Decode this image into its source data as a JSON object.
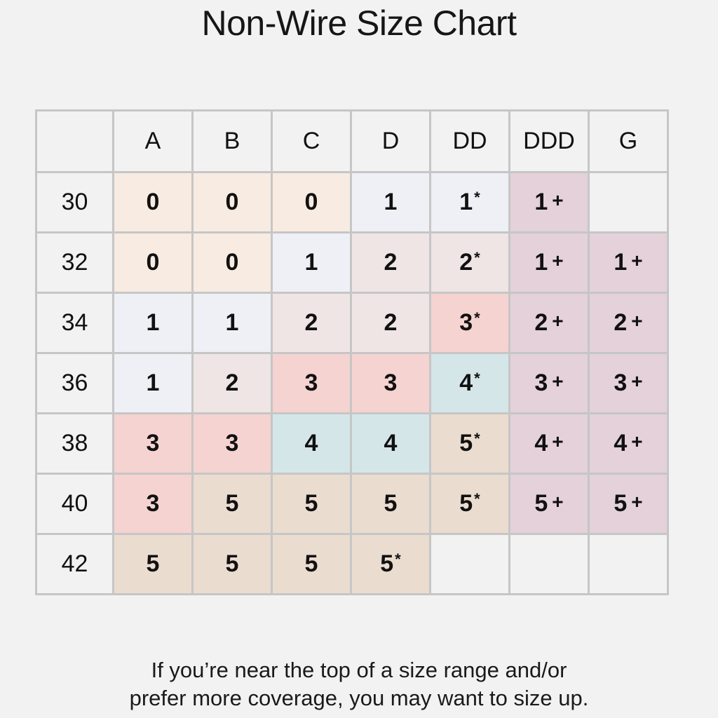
{
  "title": "Non-Wire Size Chart",
  "columns": [
    "A",
    "B",
    "C",
    "D",
    "DD",
    "DDD",
    "G"
  ],
  "rows": [
    {
      "band": "30",
      "cells": [
        {
          "size": "0",
          "mark": ""
        },
        {
          "size": "0",
          "mark": ""
        },
        {
          "size": "0",
          "mark": ""
        },
        {
          "size": "1",
          "mark": ""
        },
        {
          "size": "1",
          "mark": "*"
        },
        {
          "size": "1",
          "mark": "+"
        },
        {
          "size": "",
          "mark": ""
        }
      ]
    },
    {
      "band": "32",
      "cells": [
        {
          "size": "0",
          "mark": ""
        },
        {
          "size": "0",
          "mark": ""
        },
        {
          "size": "1",
          "mark": ""
        },
        {
          "size": "2",
          "mark": ""
        },
        {
          "size": "2",
          "mark": "*"
        },
        {
          "size": "1",
          "mark": "+"
        },
        {
          "size": "1",
          "mark": "+"
        }
      ]
    },
    {
      "band": "34",
      "cells": [
        {
          "size": "1",
          "mark": ""
        },
        {
          "size": "1",
          "mark": ""
        },
        {
          "size": "2",
          "mark": ""
        },
        {
          "size": "2",
          "mark": ""
        },
        {
          "size": "3",
          "mark": "*"
        },
        {
          "size": "2",
          "mark": "+"
        },
        {
          "size": "2",
          "mark": "+"
        }
      ]
    },
    {
      "band": "36",
      "cells": [
        {
          "size": "1",
          "mark": ""
        },
        {
          "size": "2",
          "mark": ""
        },
        {
          "size": "3",
          "mark": ""
        },
        {
          "size": "3",
          "mark": ""
        },
        {
          "size": "4",
          "mark": "*"
        },
        {
          "size": "3",
          "mark": "+"
        },
        {
          "size": "3",
          "mark": "+"
        }
      ]
    },
    {
      "band": "38",
      "cells": [
        {
          "size": "3",
          "mark": ""
        },
        {
          "size": "3",
          "mark": ""
        },
        {
          "size": "4",
          "mark": ""
        },
        {
          "size": "4",
          "mark": ""
        },
        {
          "size": "5",
          "mark": "*"
        },
        {
          "size": "4",
          "mark": "+"
        },
        {
          "size": "4",
          "mark": "+"
        }
      ]
    },
    {
      "band": "40",
      "cells": [
        {
          "size": "3",
          "mark": ""
        },
        {
          "size": "5",
          "mark": ""
        },
        {
          "size": "5",
          "mark": ""
        },
        {
          "size": "5",
          "mark": ""
        },
        {
          "size": "5",
          "mark": "*"
        },
        {
          "size": "5",
          "mark": "+"
        },
        {
          "size": "5",
          "mark": "+"
        }
      ]
    },
    {
      "band": "42",
      "cells": [
        {
          "size": "5",
          "mark": ""
        },
        {
          "size": "5",
          "mark": ""
        },
        {
          "size": "5",
          "mark": ""
        },
        {
          "size": "5",
          "mark": "*"
        },
        {
          "size": "",
          "mark": ""
        },
        {
          "size": "",
          "mark": ""
        },
        {
          "size": "",
          "mark": ""
        }
      ]
    }
  ],
  "colors": {
    "0": "#f8ebe2",
    "1": "#eef0f6",
    "2": "#efe5e5",
    "3": "#f5d3d1",
    "4": "#d5e6e9",
    "5": "#ebdcd0",
    "plus": "#e4d1da",
    "empty": "#f2f2f2",
    "border": "#c6c6c6"
  },
  "note": [
    "If you’re near the top of a size range and/or",
    "prefer more coverage, you may want to size up."
  ]
}
